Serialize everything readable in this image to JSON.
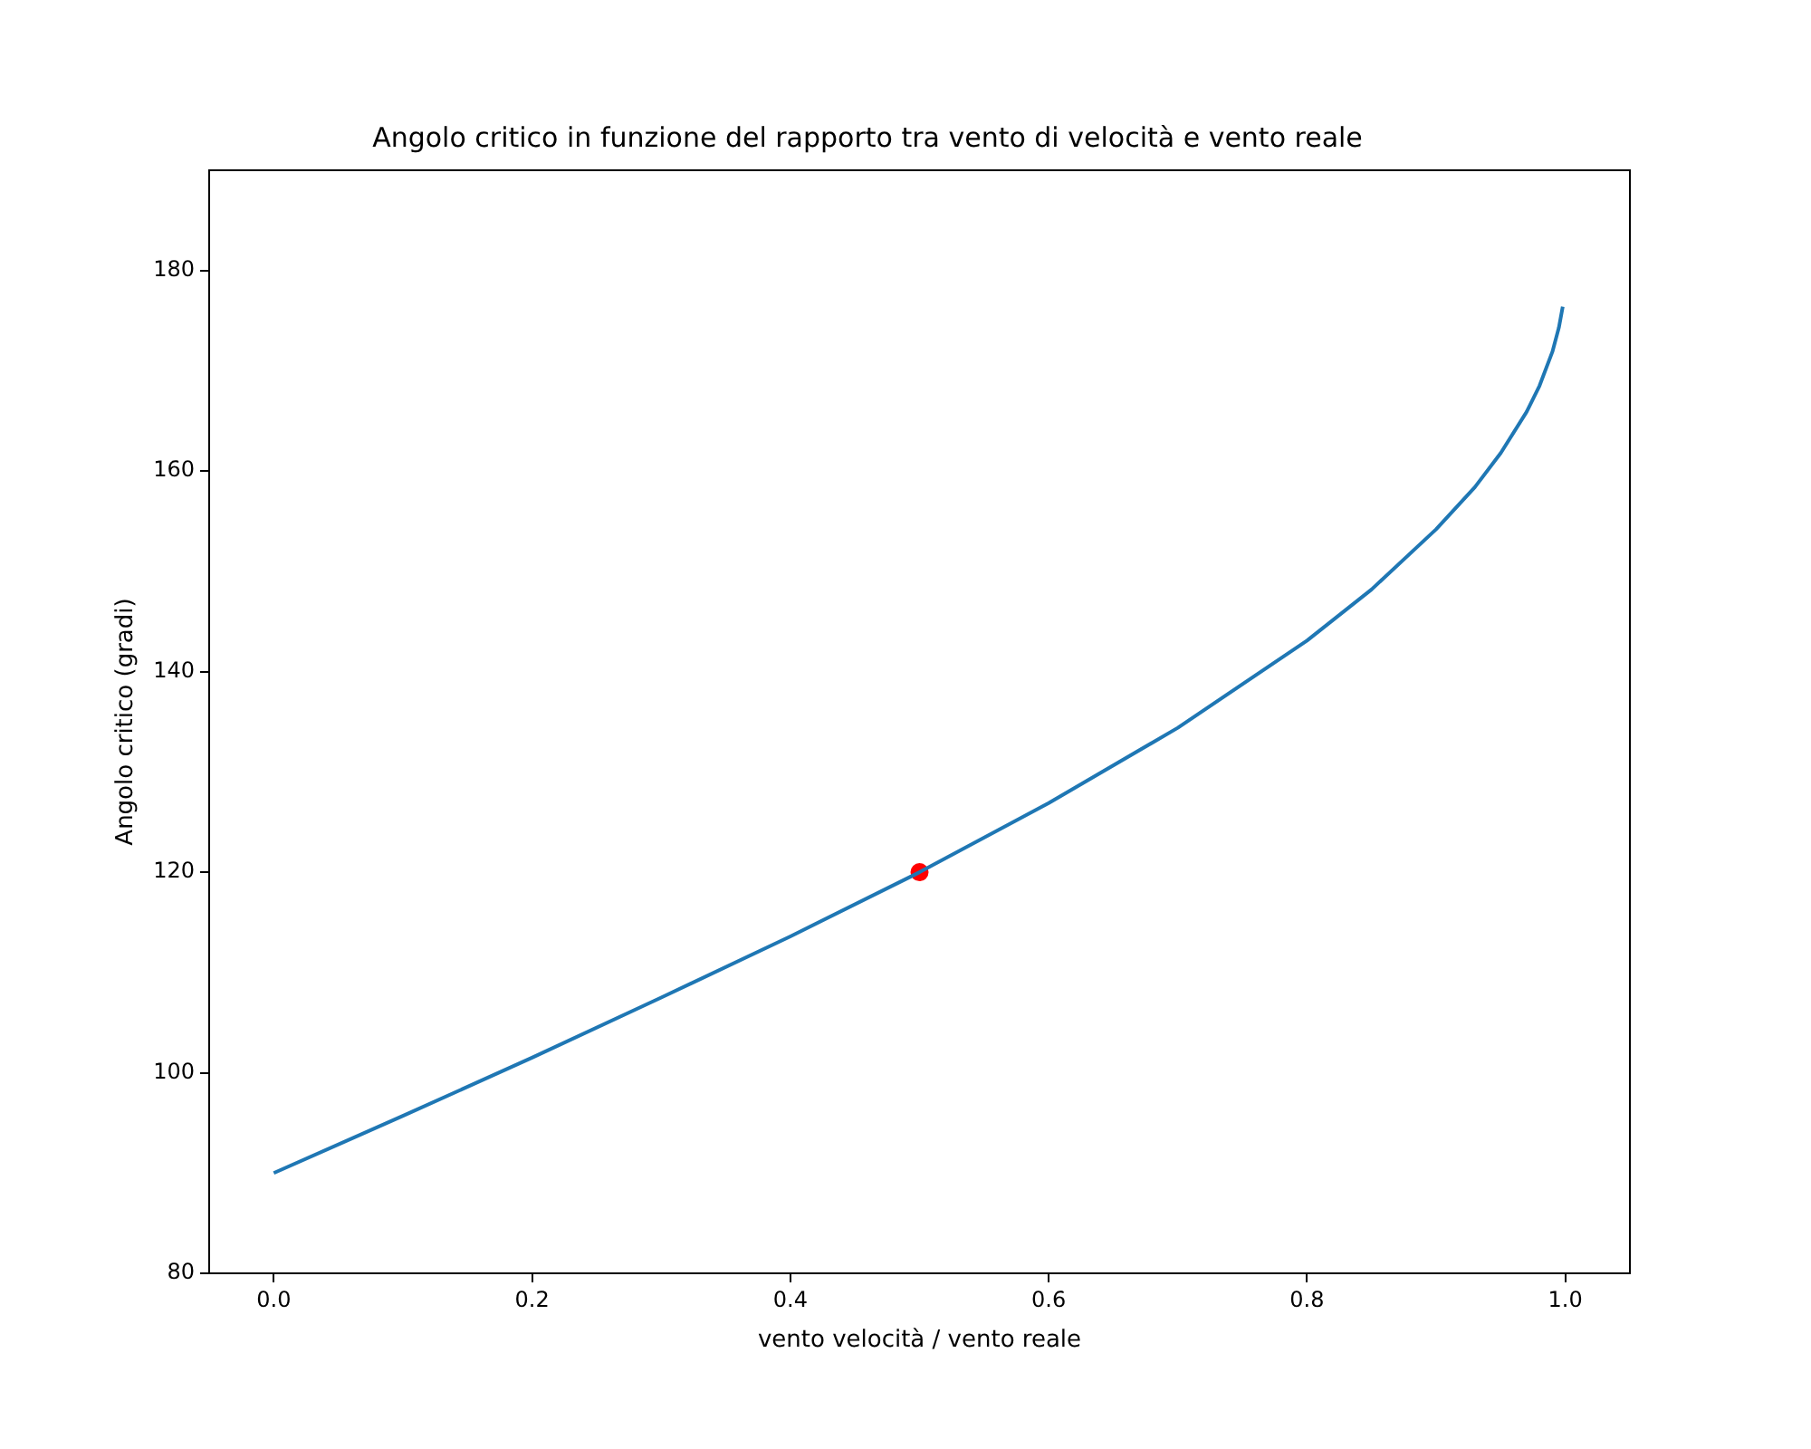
{
  "chart_data": {
    "type": "line",
    "title": "Angolo critico in funzione del rapporto tra vento di velocità e vento reale",
    "xlabel": "vento velocità / vento reale",
    "ylabel": "Angolo critico (gradi)",
    "x": [
      0,
      0.1,
      0.2,
      0.3,
      0.4,
      0.5,
      0.6,
      0.7,
      0.8,
      0.85,
      0.9,
      0.93,
      0.95,
      0.97,
      0.98,
      0.99,
      0.995,
      0.998
    ],
    "series": [
      {
        "color": "#1f77b4",
        "values": [
          90,
          95.7,
          101.5,
          107.5,
          113.6,
          120,
          126.9,
          134.4,
          143.1,
          148.2,
          154.2,
          158.4,
          161.8,
          165.9,
          168.5,
          171.9,
          174.3,
          176.4
        ]
      },
      {
        "type": "scatter",
        "color": "#ff0000",
        "x": [
          0.5
        ],
        "values": [
          120
        ],
        "marker": "circle"
      }
    ],
    "xlim": [
      -0.05,
      1.05
    ],
    "ylim": [
      80,
      190
    ],
    "xticks": [
      {
        "value": 0,
        "label": "0.0"
      },
      {
        "value": 0.2,
        "label": "0.2"
      },
      {
        "value": 0.4,
        "label": "0.4"
      },
      {
        "value": 0.6,
        "label": "0.6"
      },
      {
        "value": 0.8,
        "label": "0.8"
      },
      {
        "value": 1,
        "label": "1.0"
      }
    ],
    "yticks": [
      80,
      100,
      120,
      140,
      160,
      180
    ],
    "grid": false,
    "legend": false
  }
}
